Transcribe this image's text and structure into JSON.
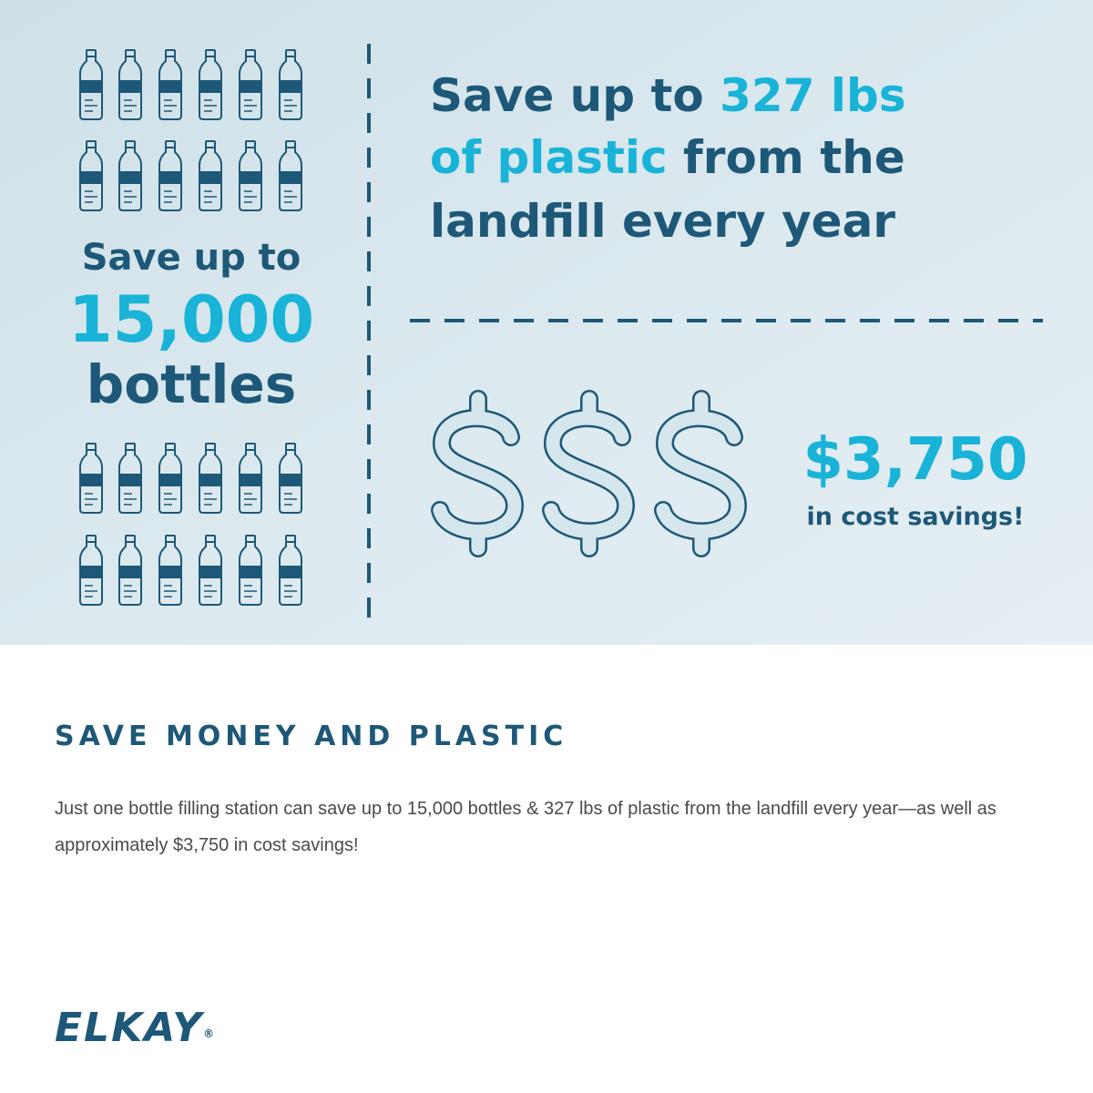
{
  "infographic": {
    "bottles": {
      "lead": "Save up to",
      "number": "15,000",
      "unit": "bottles"
    },
    "plastic": {
      "lead": "Save up to",
      "amount": "327 lbs",
      "amount_cont": "of plastic",
      "tail": "from the",
      "tail_cont": "landfill every year"
    },
    "savings": {
      "amount": "$3,750",
      "caption": "in cost savings!"
    }
  },
  "section": {
    "heading": "SAVE MONEY AND PLASTIC",
    "body": "Just one bottle filling station can save up to 15,000 bottles & 327 lbs of plastic from the landfill every year—as well as approximately $3,750 in cost savings!"
  },
  "logo": {
    "text": "ELKAY",
    "mark": "®"
  }
}
